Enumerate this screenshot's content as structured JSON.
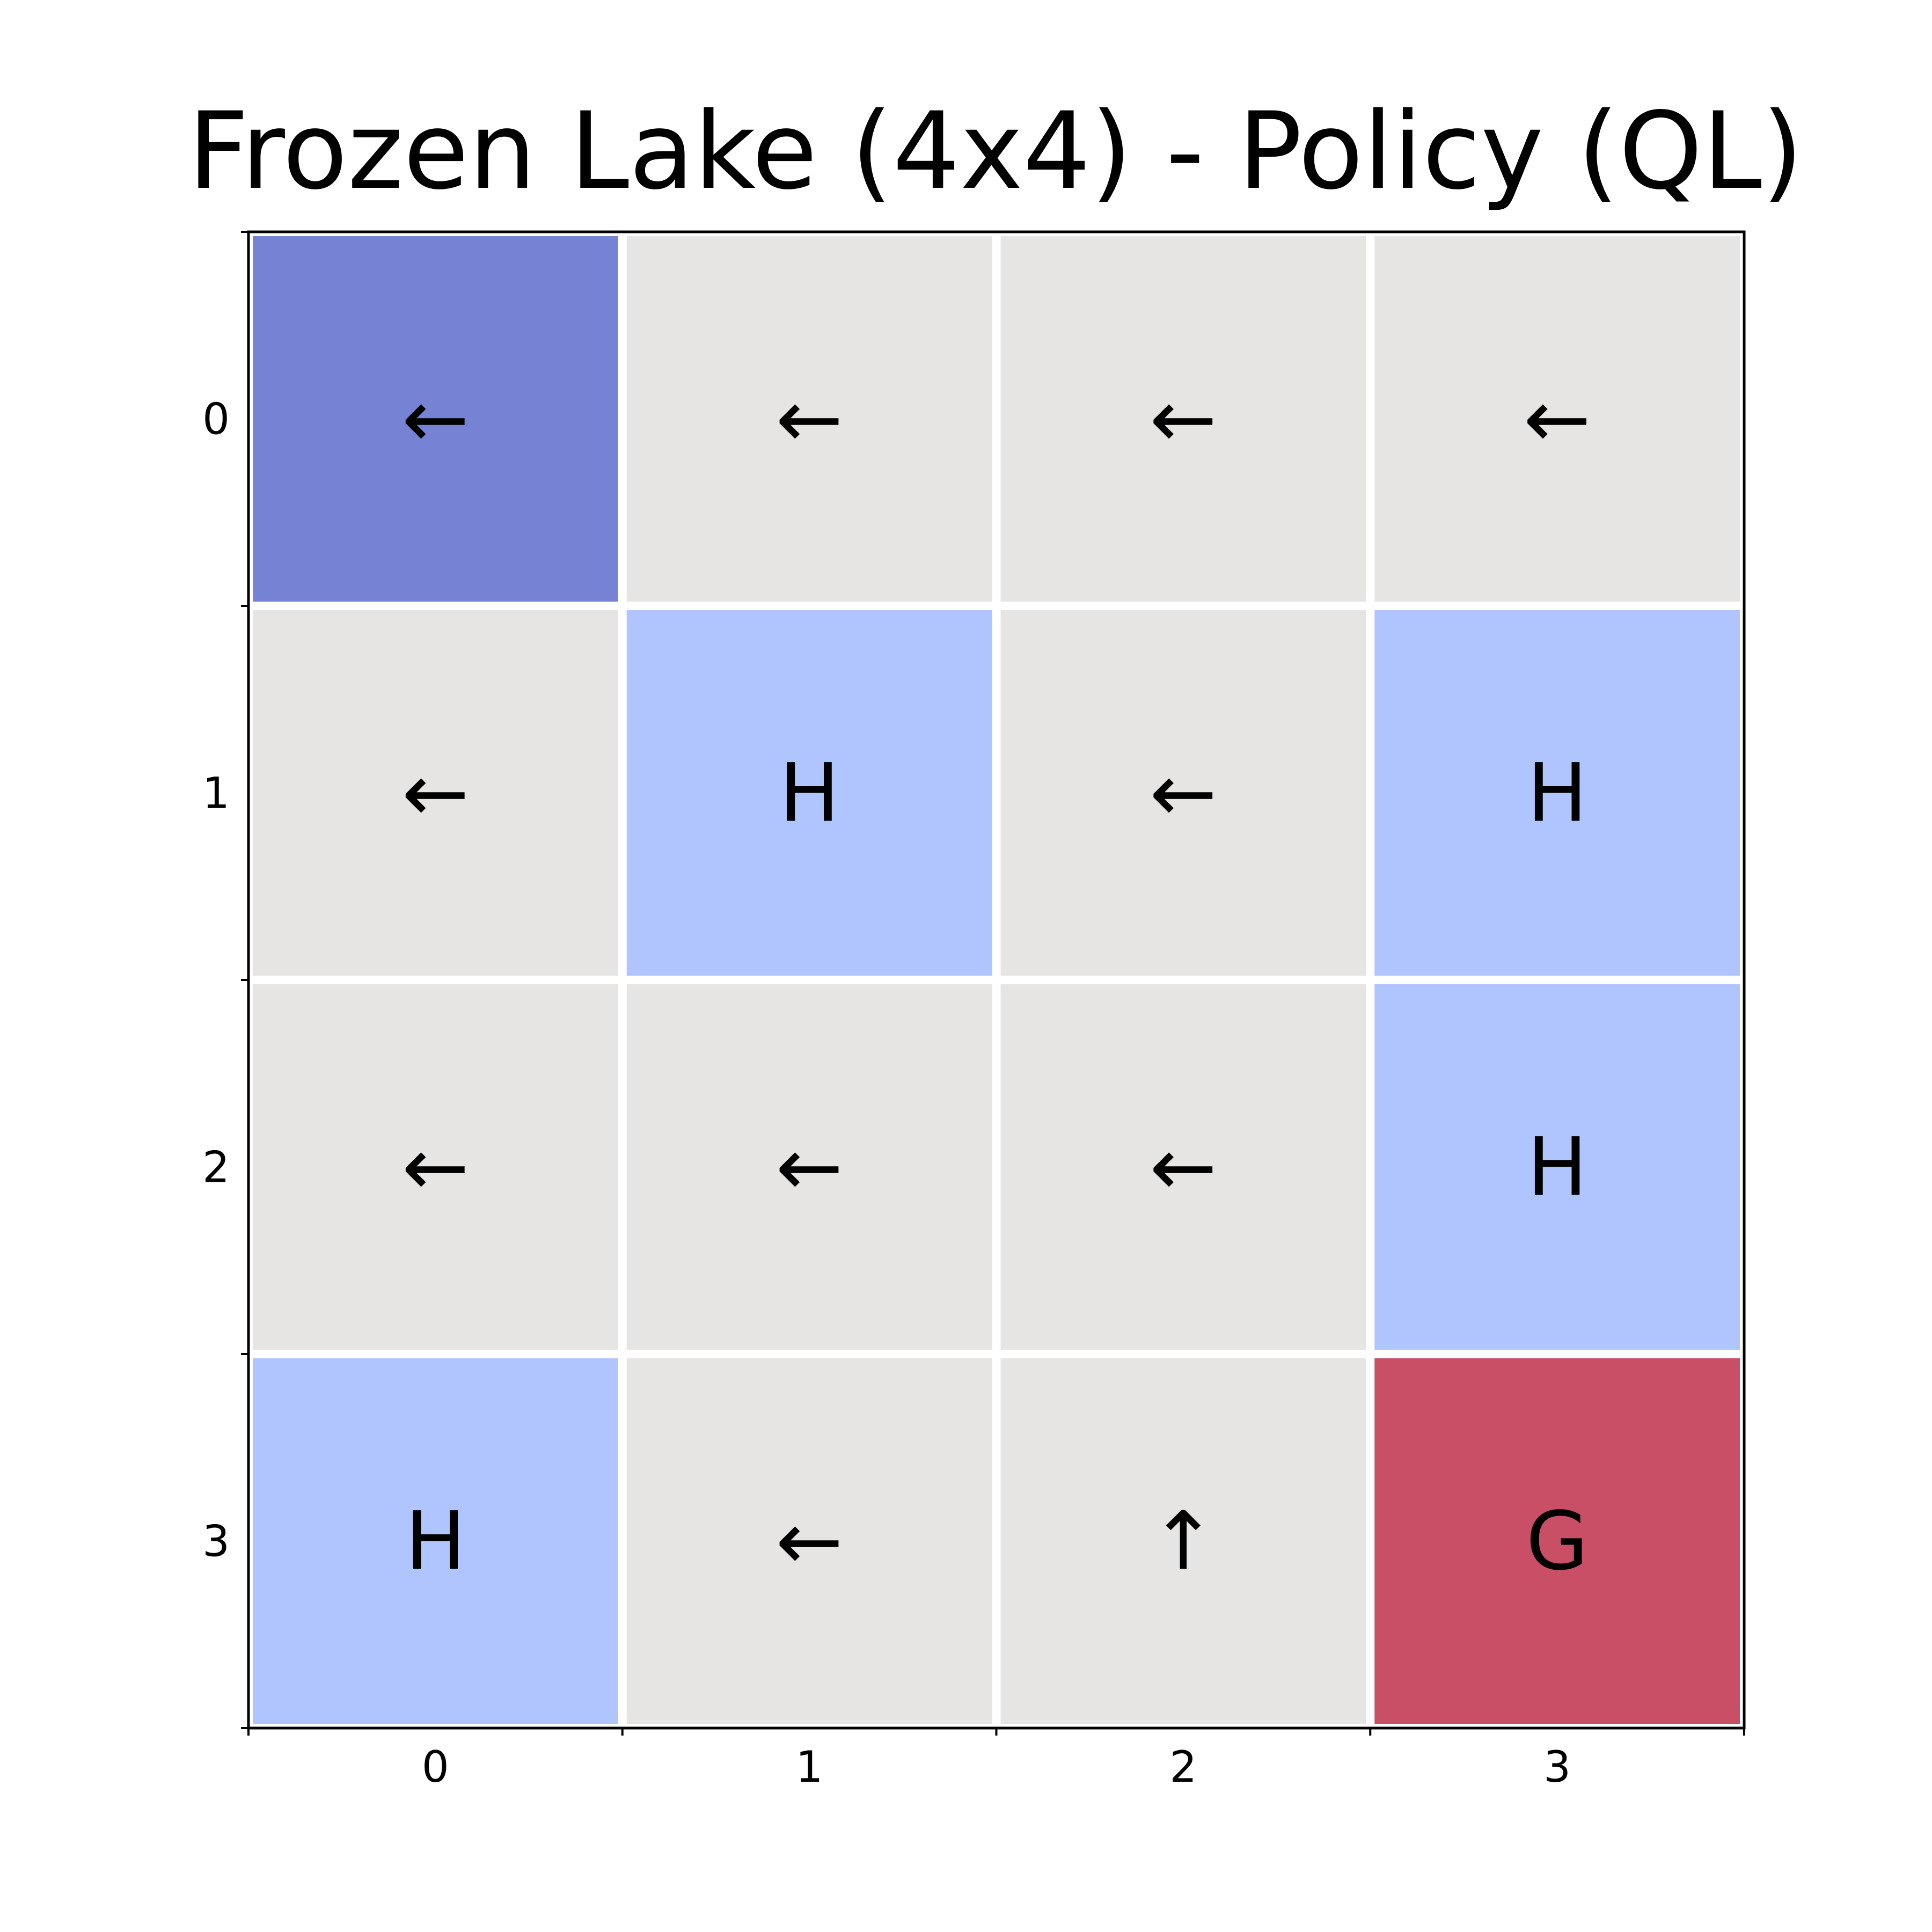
{
  "chart_data": {
    "type": "heatmap",
    "title": "Frozen Lake (4x4) - Policy (QL)",
    "xlabel": "",
    "ylabel": "",
    "x_ticks": [
      "0",
      "1",
      "2",
      "3"
    ],
    "y_ticks": [
      "0",
      "1",
      "2",
      "3"
    ],
    "grid_lines": true,
    "cells": [
      [
        "←",
        "←",
        "←",
        "←"
      ],
      [
        "←",
        "H",
        "←",
        "H"
      ],
      [
        "←",
        "←",
        "←",
        "H"
      ],
      [
        "H",
        "←",
        "↑",
        "G"
      ]
    ],
    "cell_colors": [
      [
        "#7682d3",
        "#e6e5e3",
        "#e6e5e3",
        "#e6e5e3"
      ],
      [
        "#e6e5e3",
        "#b0c5fd",
        "#e6e5e3",
        "#b0c5fd"
      ],
      [
        "#e6e5e3",
        "#e6e5e3",
        "#e6e5e3",
        "#b0c5fd"
      ],
      [
        "#b0c5fd",
        "#e6e5e3",
        "#e6e5e3",
        "#c94f67"
      ]
    ]
  }
}
